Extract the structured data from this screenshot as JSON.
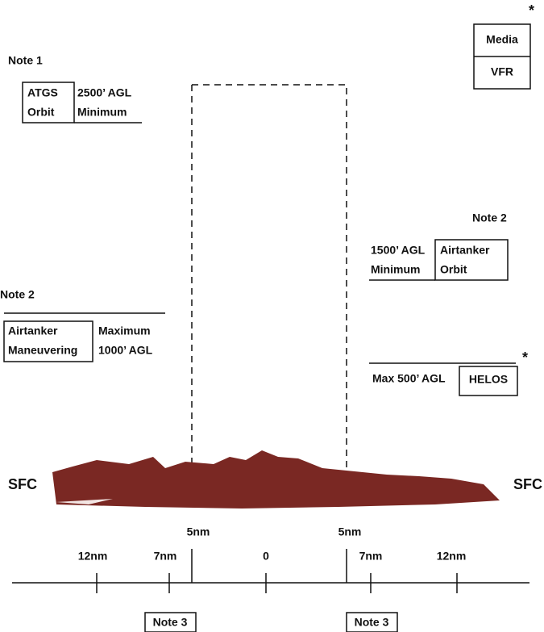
{
  "corner": {
    "asterisk": "*",
    "media": "Media",
    "vfr": "VFR"
  },
  "atgs": {
    "note": "Note 1",
    "box": [
      "ATGS",
      "Orbit"
    ],
    "altitude": [
      "2500’ AGL",
      "Minimum"
    ]
  },
  "airtanker_orbit": {
    "note": "Note 2",
    "altitude": [
      "1500’ AGL",
      "Minimum"
    ],
    "box": [
      "Airtanker",
      "Orbit"
    ]
  },
  "airtanker_maneuvering": {
    "note": "Note 2",
    "box": [
      "Airtanker",
      "Maneuvering"
    ],
    "altitude": [
      "Maximum",
      "1000’ AGL"
    ]
  },
  "helos": {
    "altitude": "Max 500’ AGL",
    "box": "HELOS",
    "asterisk": "*"
  },
  "surface": {
    "left": "SFC",
    "right": "SFC"
  },
  "axis": {
    "labels": [
      "12nm",
      "7nm",
      "5nm",
      "0",
      "5nm",
      "7nm",
      "12nm"
    ],
    "notes": [
      "Note 3",
      "Note 3"
    ]
  }
}
